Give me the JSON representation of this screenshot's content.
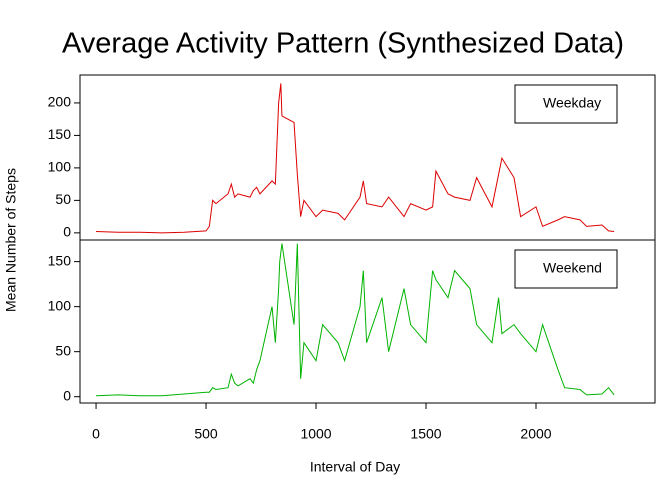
{
  "chart_data": [
    {
      "type": "line",
      "title": "Average Activity Pattern (Synthesized Data)",
      "ylabel": "Mean Number of Steps",
      "x": [
        0,
        100,
        200,
        300,
        400,
        500,
        515,
        530,
        545,
        600,
        615,
        630,
        645,
        700,
        715,
        730,
        745,
        800,
        815,
        830,
        835,
        840,
        845,
        900,
        915,
        930,
        945,
        1000,
        1030,
        1100,
        1130,
        1200,
        1215,
        1230,
        1300,
        1330,
        1400,
        1430,
        1500,
        1530,
        1545,
        1600,
        1630,
        1700,
        1730,
        1800,
        1830,
        1845,
        1900,
        1930,
        2000,
        2030,
        2100,
        2130,
        2200,
        2230,
        2300,
        2330,
        2355
      ],
      "series": [
        {
          "name": "Weekday",
          "color": "#dd0000",
          "values": [
            2,
            1,
            1,
            0,
            1,
            3,
            10,
            50,
            45,
            60,
            75,
            55,
            60,
            55,
            65,
            70,
            60,
            80,
            75,
            200,
            215,
            230,
            180,
            170,
            90,
            25,
            50,
            25,
            35,
            30,
            20,
            55,
            80,
            45,
            40,
            55,
            25,
            45,
            35,
            40,
            95,
            60,
            55,
            50,
            85,
            40,
            90,
            115,
            85,
            25,
            40,
            10,
            20,
            25,
            20,
            10,
            12,
            3,
            2
          ]
        }
      ],
      "xlim": [
        -73,
        2541
      ],
      "ylim": [
        -11,
        243
      ],
      "yticks": [
        0,
        50,
        100,
        150,
        200
      ],
      "legend": "topright"
    },
    {
      "type": "line",
      "xlabel": "Interval of Day",
      "x": [
        0,
        100,
        200,
        300,
        400,
        500,
        515,
        530,
        545,
        600,
        615,
        630,
        645,
        700,
        715,
        730,
        745,
        800,
        815,
        830,
        835,
        840,
        845,
        900,
        915,
        930,
        945,
        1000,
        1030,
        1100,
        1130,
        1200,
        1215,
        1230,
        1300,
        1330,
        1400,
        1430,
        1500,
        1530,
        1545,
        1600,
        1630,
        1700,
        1730,
        1800,
        1830,
        1845,
        1900,
        1930,
        2000,
        2030,
        2100,
        2130,
        2200,
        2230,
        2300,
        2330,
        2355
      ],
      "series": [
        {
          "name": "Weekend",
          "color": "#00b300",
          "values": [
            1,
            2,
            1,
            1,
            3,
            5,
            5,
            10,
            8,
            10,
            25,
            15,
            12,
            20,
            15,
            30,
            40,
            100,
            60,
            120,
            150,
            160,
            170,
            80,
            170,
            20,
            60,
            40,
            80,
            60,
            40,
            100,
            140,
            60,
            110,
            50,
            120,
            80,
            60,
            140,
            130,
            110,
            140,
            120,
            80,
            60,
            110,
            70,
            80,
            70,
            50,
            80,
            30,
            10,
            8,
            2,
            3,
            10,
            2
          ]
        }
      ],
      "xlim": [
        -73,
        2541
      ],
      "ylim": [
        -7,
        174
      ],
      "yticks": [
        0,
        50,
        100,
        150
      ],
      "xticks": [
        0,
        500,
        1000,
        1500,
        2000
      ],
      "legend": "topright"
    }
  ]
}
